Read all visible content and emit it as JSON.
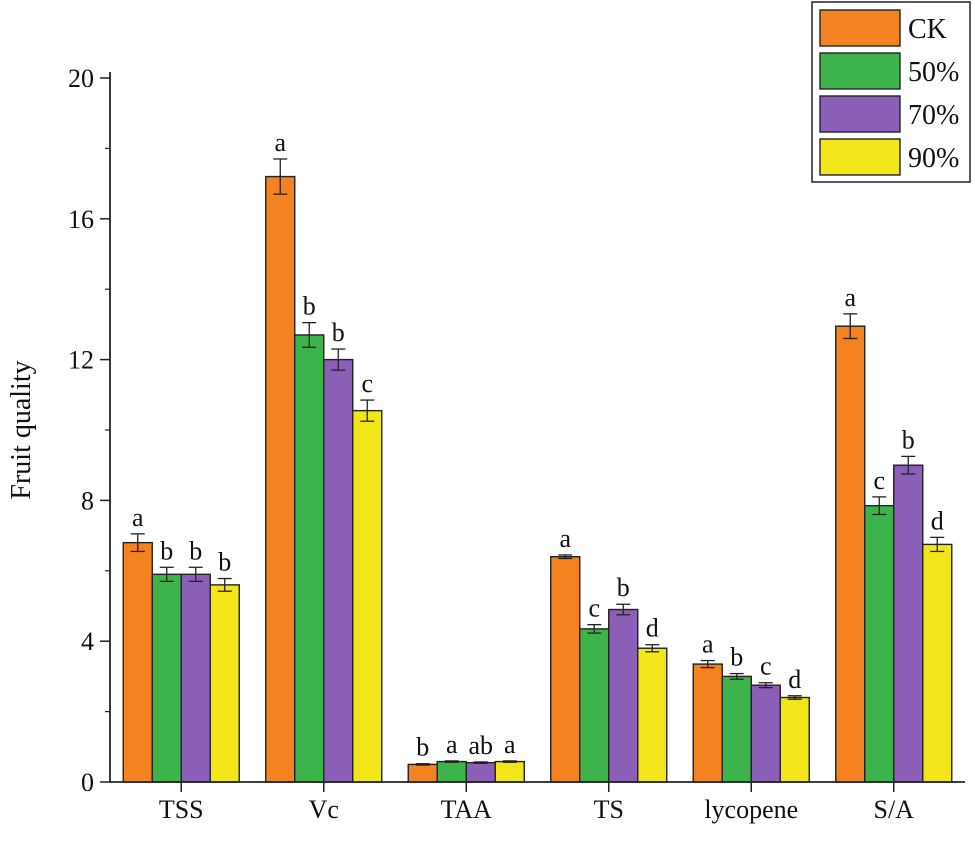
{
  "chart_data": {
    "type": "bar",
    "title": "",
    "xlabel": "",
    "ylabel": "Fruit quality",
    "ylim": [
      0,
      20
    ],
    "yticks": [
      0,
      4,
      8,
      12,
      16,
      20
    ],
    "yticklabels": [
      "0",
      "4",
      "8",
      "12",
      "16",
      "20"
    ],
    "grid": false,
    "legend_position": "top-right",
    "categories": [
      "TSS",
      "Vc",
      "TAA",
      "TS",
      "lycopene",
      "S/A"
    ],
    "series": [
      {
        "name": "CK",
        "color": "#f58220",
        "values": [
          6.8,
          17.2,
          0.5,
          6.4,
          3.35,
          12.95
        ],
        "errors": [
          0.25,
          0.5,
          0.02,
          0.05,
          0.1,
          0.35
        ],
        "letters": [
          "a",
          "a",
          "b",
          "a",
          "a",
          "a"
        ]
      },
      {
        "name": "50%",
        "color": "#3cb44b",
        "values": [
          5.9,
          12.7,
          0.58,
          4.35,
          3.0,
          7.85
        ],
        "errors": [
          0.2,
          0.35,
          0.02,
          0.12,
          0.08,
          0.25
        ],
        "letters": [
          "b",
          "b",
          "a",
          "c",
          "b",
          "c"
        ]
      },
      {
        "name": "70%",
        "color": "#8b5fb7",
        "values": [
          5.9,
          12.0,
          0.55,
          4.9,
          2.75,
          9.0
        ],
        "errors": [
          0.2,
          0.3,
          0.02,
          0.15,
          0.07,
          0.25
        ],
        "letters": [
          "b",
          "b",
          "ab",
          "b",
          "c",
          "b"
        ]
      },
      {
        "name": "90%",
        "color": "#f2e61b",
        "values": [
          5.6,
          10.55,
          0.58,
          3.8,
          2.4,
          6.75
        ],
        "errors": [
          0.18,
          0.3,
          0.02,
          0.1,
          0.05,
          0.2
        ],
        "letters": [
          "b",
          "c",
          "a",
          "d",
          "d",
          "d"
        ]
      }
    ]
  }
}
